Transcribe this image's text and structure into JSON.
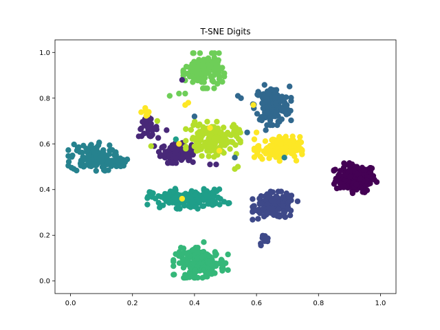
{
  "chart_data": {
    "type": "scatter",
    "title": "T-SNE Digits",
    "xlabel": "",
    "ylabel": "",
    "xlim": [
      -0.05,
      1.05
    ],
    "ylim": [
      -0.055,
      1.055
    ],
    "xticks": [
      0.0,
      0.2,
      0.4,
      0.6,
      0.8,
      1.0
    ],
    "yticks": [
      0.0,
      0.2,
      0.4,
      0.6,
      0.8,
      1.0
    ],
    "xtick_labels": [
      "0.0",
      "0.2",
      "0.4",
      "0.6",
      "0.8",
      "1.0"
    ],
    "ytick_labels": [
      "0.0",
      "0.2",
      "0.4",
      "0.6",
      "0.8",
      "1.0"
    ],
    "grid": false,
    "colormap": "viridis",
    "clusters": [
      {
        "label": 0,
        "color": "#440154",
        "center": [
          0.92,
          0.45
        ],
        "spread": [
          0.032,
          0.03
        ],
        "count": 180
      },
      {
        "label": 1,
        "color": "#482878",
        "center": [
          0.34,
          0.56
        ],
        "spread": [
          0.025,
          0.02
        ],
        "count": 110
      },
      {
        "label": 1,
        "color": "#482878",
        "center": [
          0.25,
          0.67
        ],
        "spread": [
          0.015,
          0.02
        ],
        "count": 40
      },
      {
        "label": 2,
        "color": "#3e4989",
        "center": [
          0.66,
          0.33
        ],
        "spread": [
          0.033,
          0.028
        ],
        "count": 170
      },
      {
        "label": 2,
        "color": "#3e4989",
        "center": [
          0.625,
          0.18
        ],
        "spread": [
          0.008,
          0.012
        ],
        "count": 12
      },
      {
        "label": 3,
        "color": "#31688e",
        "center": [
          0.65,
          0.77
        ],
        "spread": [
          0.028,
          0.04
        ],
        "count": 160
      },
      {
        "label": 4,
        "color": "#26828e",
        "center": [
          0.07,
          0.54
        ],
        "spread": [
          0.035,
          0.03
        ],
        "count": 120
      },
      {
        "label": 4,
        "color": "#26828e",
        "center": [
          0.15,
          0.52
        ],
        "spread": [
          0.015,
          0.012
        ],
        "count": 25
      },
      {
        "label": 5,
        "color": "#1f9e89",
        "center": [
          0.38,
          0.36
        ],
        "spread": [
          0.06,
          0.02
        ],
        "count": 160
      },
      {
        "label": 6,
        "color": "#35b779",
        "center": [
          0.42,
          0.08
        ],
        "spread": [
          0.04,
          0.03
        ],
        "count": 170
      },
      {
        "label": 7,
        "color": "#6ece58",
        "center": [
          0.43,
          0.92
        ],
        "spread": [
          0.03,
          0.035
        ],
        "count": 150
      },
      {
        "label": 8,
        "color": "#b5de2b",
        "center": [
          0.46,
          0.62
        ],
        "spread": [
          0.04,
          0.035
        ],
        "count": 160
      },
      {
        "label": 9,
        "color": "#fde725",
        "center": [
          0.67,
          0.58
        ],
        "spread": [
          0.035,
          0.025
        ],
        "count": 150
      },
      {
        "label": 9,
        "color": "#fde725",
        "center": [
          0.25,
          0.74
        ],
        "spread": [
          0.01,
          0.008
        ],
        "count": 10
      }
    ],
    "outliers": [
      {
        "label": 1,
        "color": "#482878",
        "x": 0.31,
        "y": 0.66
      },
      {
        "label": 1,
        "color": "#482878",
        "x": 0.45,
        "y": 0.51
      },
      {
        "label": 1,
        "color": "#482878",
        "x": 0.47,
        "y": 0.51
      },
      {
        "label": 1,
        "color": "#482878",
        "x": 0.27,
        "y": 0.59
      },
      {
        "label": 1,
        "color": "#482878",
        "x": 0.36,
        "y": 0.88
      },
      {
        "label": 3,
        "color": "#31688e",
        "x": 0.54,
        "y": 0.81
      },
      {
        "label": 3,
        "color": "#31688e",
        "x": 0.55,
        "y": 0.8
      },
      {
        "label": 3,
        "color": "#31688e",
        "x": 0.57,
        "y": 0.65
      },
      {
        "label": 3,
        "color": "#31688e",
        "x": 0.4,
        "y": 0.72
      },
      {
        "label": 3,
        "color": "#31688e",
        "x": 0.53,
        "y": 0.54
      },
      {
        "label": 3,
        "color": "#31688e",
        "x": 0.63,
        "y": 0.66
      },
      {
        "label": 4,
        "color": "#26828e",
        "x": 0.69,
        "y": 0.54
      },
      {
        "label": 5,
        "color": "#1f9e89",
        "x": 0.34,
        "y": 0.62
      },
      {
        "label": 6,
        "color": "#35b779",
        "x": 0.43,
        "y": 0.17
      },
      {
        "label": 7,
        "color": "#6ece58",
        "x": 0.35,
        "y": 0.82
      },
      {
        "label": 7,
        "color": "#6ece58",
        "x": 0.37,
        "y": 0.82
      },
      {
        "label": 7,
        "color": "#6ece58",
        "x": 0.32,
        "y": 0.81
      },
      {
        "label": 8,
        "color": "#b5de2b",
        "x": 0.53,
        "y": 0.49
      },
      {
        "label": 8,
        "color": "#b5de2b",
        "x": 0.54,
        "y": 0.5
      },
      {
        "label": 8,
        "color": "#b5de2b",
        "x": 0.28,
        "y": 0.7
      },
      {
        "label": 8,
        "color": "#b5de2b",
        "x": 0.26,
        "y": 0.59
      },
      {
        "label": 9,
        "color": "#fde725",
        "x": 0.36,
        "y": 0.36
      },
      {
        "label": 9,
        "color": "#fde725",
        "x": 0.35,
        "y": 0.6
      },
      {
        "label": 9,
        "color": "#fde725",
        "x": 0.37,
        "y": 0.77
      },
      {
        "label": 9,
        "color": "#fde725",
        "x": 0.38,
        "y": 0.78
      },
      {
        "label": 9,
        "color": "#fde725",
        "x": 0.6,
        "y": 0.65
      },
      {
        "label": 9,
        "color": "#fde725",
        "x": 0.59,
        "y": 0.77
      },
      {
        "label": 9,
        "color": "#fde725",
        "x": 0.48,
        "y": 0.57
      },
      {
        "label": 9,
        "color": "#fde725",
        "x": 0.45,
        "y": 0.67
      }
    ]
  }
}
